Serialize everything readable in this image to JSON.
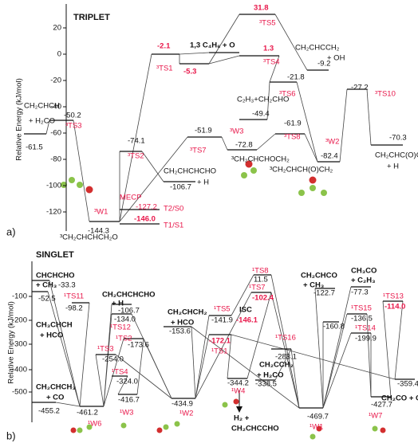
{
  "panels": [
    {
      "title": "TRIPLET",
      "y_axis_label": "Relative Energy (kJ/mol)",
      "panel_label": "a)",
      "yticks": [
        20,
        0,
        -20,
        -40,
        -60,
        -80,
        -100,
        -120
      ],
      "texts": [
        "-61.5",
        "CH₂CHCH",
        "+ H₂CO",
        "-50.2",
        "³TS3",
        "³W1",
        "-144.3",
        "³CH₂CHCHCH₂O",
        "MECP",
        "-127.2",
        "T2/S0",
        "-146.0",
        "T1/S1",
        "-74.1",
        "³TS2",
        "CH₂CHCHCHO",
        "-106.7",
        "+ H",
        "-2.1",
        "³TS1",
        "-5.3",
        "1,3 C₄H₆ + O",
        "-51.9",
        "³TS7",
        "31.8",
        "³TS5",
        "1.3",
        "³TS4",
        "CH₂CHCCH₂",
        "+ OH",
        "-9.2",
        "-21.8",
        "³TS6",
        "C₂H₃+CH₂CHO",
        "-49.4",
        "³W3",
        "-72.8",
        "³CH₂CHCHOCH₂",
        "-61.9",
        "³TS8",
        "³W2",
        "-82.4",
        "³CH₂CHCH(O)CH₂",
        "-27.2",
        "³TS10",
        "-70.3",
        "CH₂CHC(O)CH₂",
        "+ H"
      ]
    },
    {
      "title": "SINGLET",
      "y_axis_label": "Relative Energy (kJ/mol)",
      "panel_label": "b)",
      "yticks": [
        -100,
        -200,
        -300,
        -400,
        -500
      ],
      "texts": [
        "CHCHCHO",
        "+ CH₃",
        "-33.3",
        "-52.5",
        "¹TS11",
        "-98.2",
        "CH₃CHCH",
        "+ HCO",
        "CH₂CHCH₃",
        "+ CO",
        "-455.2",
        "-461.2",
        "¹W6",
        "CH₂CHCHCHO",
        "+ H",
        "-106.7",
        "-134.0",
        "¹TS12",
        "¹TS2",
        "-173.6",
        "¹TS3",
        "-254.0",
        "¹TS4",
        "-324.0",
        "-416.7",
        "¹W3",
        "CH₂CHCH₂",
        "+ HCO",
        "-153.6",
        "-434.9",
        "¹W2",
        "¹TS5",
        "-141.9",
        "-172.1",
        "¹TS1",
        "-344.2",
        "¹W4",
        "ISC",
        "-146.1",
        "¹TS8",
        "11.5",
        "¹TS7",
        "-102.4",
        "¹TS16",
        "-283.1",
        "CH₂CCH₂",
        "+ H₂CO",
        "-338.5",
        "H₂ +",
        "CH₂CHCCHO",
        "CH₂CHCO",
        "+ CH₃",
        "-122.7",
        "-160.8",
        "-469.7",
        "¹W1",
        "CH₃CO",
        "+ C₂H₃",
        "-77.3",
        "¹TS15",
        "-136.5",
        "¹TS14",
        "-199.9",
        "-427.7",
        "¹W7",
        "¹TS13",
        "-114.0",
        "-359.4",
        "CH₂CO + C₂H₄"
      ]
    }
  ]
}
